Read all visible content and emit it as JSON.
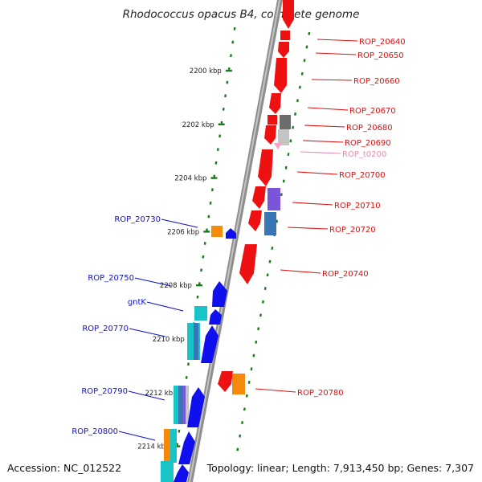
{
  "title": "Rhodococcus opacus B4, complete genome",
  "footer": {
    "accession": "Accession: NC_012522",
    "summary": "Topology: linear; Length: 7,913,450 bp; Genes: 7,307"
  },
  "colors": {
    "axis": "#8c8c8c",
    "ticks": "#1f7a1f",
    "label_right": "#dd1111",
    "label_left": "#1111cc",
    "label_trna": "#f08ab0"
  },
  "kbp_ticks": [
    {
      "label": "2200 kbp",
      "kb": 2200
    },
    {
      "label": "2202 kbp",
      "kb": 2202
    },
    {
      "label": "2204 kbp",
      "kb": 2204
    },
    {
      "label": "2206 kbp",
      "kb": 2206
    },
    {
      "label": "2208 kbp",
      "kb": 2208
    },
    {
      "label": "2210 kbp",
      "kb": 2210
    },
    {
      "label": "2212 kbp",
      "kb": 2212
    },
    {
      "label": "2214 kbp",
      "kb": 2214
    }
  ],
  "right_labels": [
    {
      "name": "ROP_20640",
      "kb": 2199.3,
      "type": "cds"
    },
    {
      "name": "ROP_20650",
      "kb": 2199.6,
      "type": "cds"
    },
    {
      "name": "ROP_20660",
      "kb": 2200.4,
      "type": "cds"
    },
    {
      "name": "ROP_20670",
      "kb": 2201.4,
      "type": "cds"
    },
    {
      "name": "ROP_20680",
      "kb": 2202.0,
      "type": "cds"
    },
    {
      "name": "ROP_20690",
      "kb": 2202.6,
      "type": "cds"
    },
    {
      "name": "ROP_t0200",
      "kb": 2203.0,
      "type": "trna"
    },
    {
      "name": "ROP_20700",
      "kb": 2203.8,
      "type": "cds"
    },
    {
      "name": "ROP_20710",
      "kb": 2204.9,
      "type": "cds"
    },
    {
      "name": "ROP_20720",
      "kb": 2205.8,
      "type": "cds"
    },
    {
      "name": "ROP_20740",
      "kb": 2207.5,
      "type": "cds"
    },
    {
      "name": "ROP_20780",
      "kb": 2212.0,
      "type": "cds"
    }
  ],
  "left_labels": [
    {
      "name": "ROP_20730",
      "kb": 2205.9
    },
    {
      "name": "ROP_20750",
      "kb": 2208.0
    },
    {
      "name": "gntK",
      "kb": 2209.0
    },
    {
      "name": "ROP_20770",
      "kb": 2209.9
    },
    {
      "name": "ROP_20790",
      "kb": 2212.3
    },
    {
      "name": "ROP_20800",
      "kb": 2213.9
    }
  ]
}
